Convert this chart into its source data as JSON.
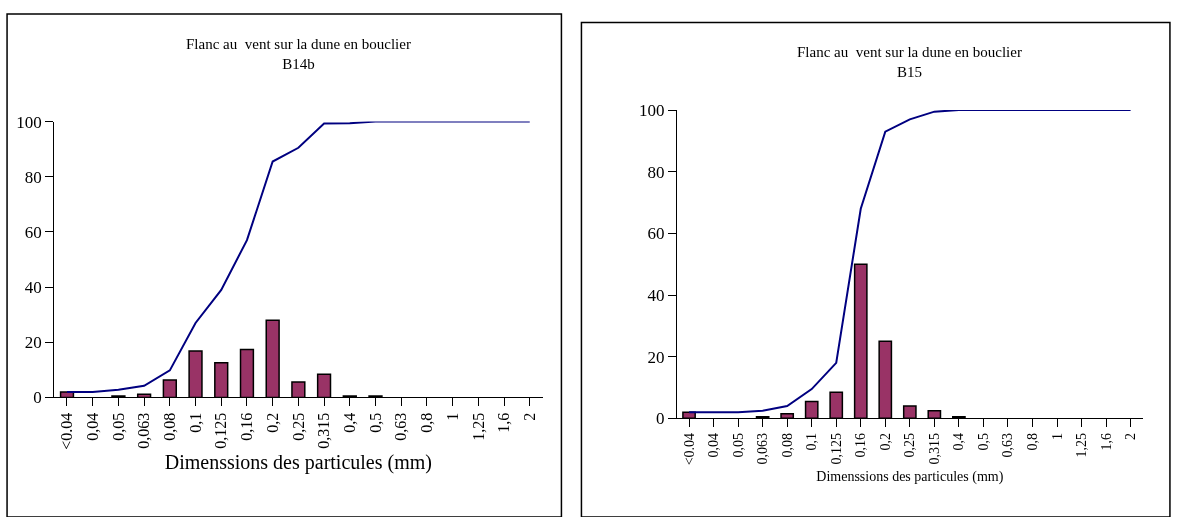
{
  "chart_data": [
    {
      "type": "bar",
      "title": "Flanc au  vent sur la dune en bouclier",
      "subtitle": "B14b",
      "xlabel": "Dimenssions des particules (mm)",
      "categories": [
        "<0.04",
        "0,04",
        "0,05",
        "0,063",
        "0,08",
        "0,1",
        "0,125",
        "0,16",
        "0,2",
        "0,25",
        "0,315",
        "0,4",
        "0,5",
        "0,63",
        "0,8",
        "1",
        "1,25",
        "1,6",
        "2"
      ],
      "series": [
        {
          "color": "#993366",
          "values": [
            2,
            0,
            0.5,
            1.2,
            6.3,
            16.8,
            12.6,
            17.4,
            28,
            5.6,
            8.4,
            0.5,
            0.5,
            0,
            0,
            0,
            0,
            0,
            0
          ]
        },
        {
          "type": "line",
          "color": "#000080",
          "values": [
            2,
            2,
            2.8,
            4.2,
            9.8,
            27,
            39,
            57,
            85.5,
            90.5,
            99.3,
            99.4,
            100,
            100,
            100,
            100,
            100,
            100,
            100
          ]
        }
      ],
      "ylim": [
        0,
        100
      ],
      "yticks": [
        0,
        20,
        40,
        60,
        80,
        100
      ]
    },
    {
      "type": "bar",
      "title": "Flanc au  vent sur la dune en bouclier",
      "subtitle": "B15",
      "xlabel": "Dimenssions des particules (mm)",
      "categories": [
        "<0.04",
        "0,04",
        "0,05",
        "0,063",
        "0,08",
        "0,1",
        "0,125",
        "0,16",
        "0,2",
        "0,25",
        "0,315",
        "0,4",
        "0,5",
        "0,63",
        "0,8",
        "1",
        "1,25",
        "1,6",
        "2"
      ],
      "series": [
        {
          "color": "#993366",
          "values": [
            2,
            0,
            0,
            0.5,
            1.5,
            5.5,
            8.5,
            50,
            25,
            4,
            2.5,
            0.5,
            0,
            0,
            0,
            0,
            0,
            0,
            0
          ]
        },
        {
          "type": "line",
          "color": "#000080",
          "values": [
            2,
            2,
            2,
            2.5,
            4,
            9.5,
            18,
            68,
            93,
            97,
            99.5,
            100,
            100,
            100,
            100,
            100,
            100,
            100,
            100
          ]
        }
      ],
      "ylim": [
        0,
        100
      ],
      "yticks": [
        0,
        20,
        40,
        60,
        80,
        100
      ]
    }
  ]
}
